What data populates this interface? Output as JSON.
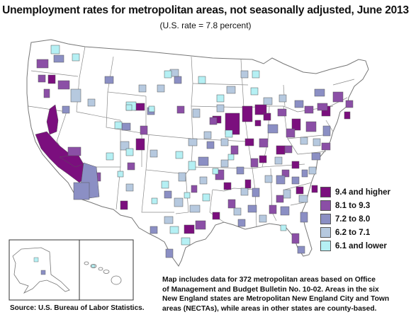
{
  "title": "Unemployment rates for metropolitan areas, not seasonally adjusted, June 2013",
  "subtitle": "(U.S. rate = 7.8 percent)",
  "legend": [
    {
      "label": "9.4 and higher",
      "color": "#7b0f7e"
    },
    {
      "label": "8.1 to 9.3",
      "color": "#8b4fa6"
    },
    {
      "label": "7.2 to 8.0",
      "color": "#8b8fc4"
    },
    {
      "label": "6.2 to 7.1",
      "color": "#b6c9df"
    },
    {
      "label": "6.1 and lower",
      "color": "#b5f0f4"
    }
  ],
  "note_lines": [
    "Map includes data for 372 metropolitan areas based on Office",
    "of Management and Budget Bulletin No. 10-02. Areas in the six",
    "New England states are Metropolitan New England City and Town",
    "areas (NECTAs), while areas in other states are county-based."
  ],
  "source": "Source:  U.S. Bureau of Labor Statistics."
}
